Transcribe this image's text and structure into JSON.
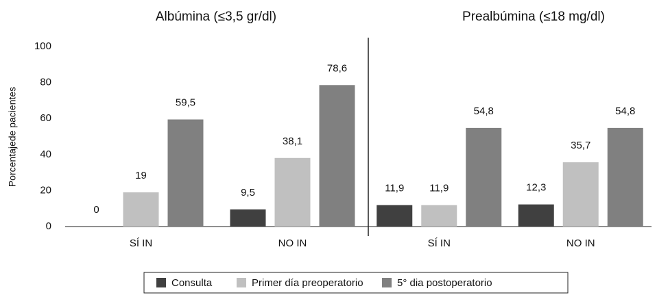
{
  "chart_data": [
    {
      "type": "bar",
      "title": "Albúmina (≤3,5 gr/dl)",
      "ylabel": "Porcentajede pacientes",
      "categories": [
        "SÍ IN",
        "NO IN"
      ],
      "series": [
        {
          "name": "Consulta",
          "color": "#404040",
          "values": [
            0,
            9.5
          ],
          "value_labels": [
            "0",
            "9,5"
          ]
        },
        {
          "name": "Primer día preoperatorio",
          "color": "#c0c0c0",
          "values": [
            19,
            38.1
          ],
          "value_labels": [
            "19",
            "38,1"
          ]
        },
        {
          "name": "5° dia postoperatorio",
          "color": "#808080",
          "values": [
            59.5,
            78.6
          ],
          "value_labels": [
            "59,5",
            "78,6"
          ]
        }
      ],
      "ylim": [
        0,
        100
      ],
      "yticks": [
        0,
        20,
        40,
        60,
        80,
        100
      ]
    },
    {
      "type": "bar",
      "title": "Prealbúmina (≤18 mg/dl)",
      "categories": [
        "SÍ IN",
        "NO IN"
      ],
      "series": [
        {
          "color": "#404040",
          "values": [
            11.9,
            12.3
          ],
          "value_labels": [
            "11,9",
            "12,3"
          ]
        },
        {
          "color": "#c0c0c0",
          "values": [
            11.9,
            35.7
          ],
          "value_labels": [
            "11,9",
            "35,7"
          ]
        },
        {
          "color": "#808080",
          "values": [
            54.8,
            54.8
          ],
          "value_labels": [
            "54,8",
            "54,8"
          ]
        }
      ],
      "ylim": [
        0,
        100
      ]
    }
  ]
}
